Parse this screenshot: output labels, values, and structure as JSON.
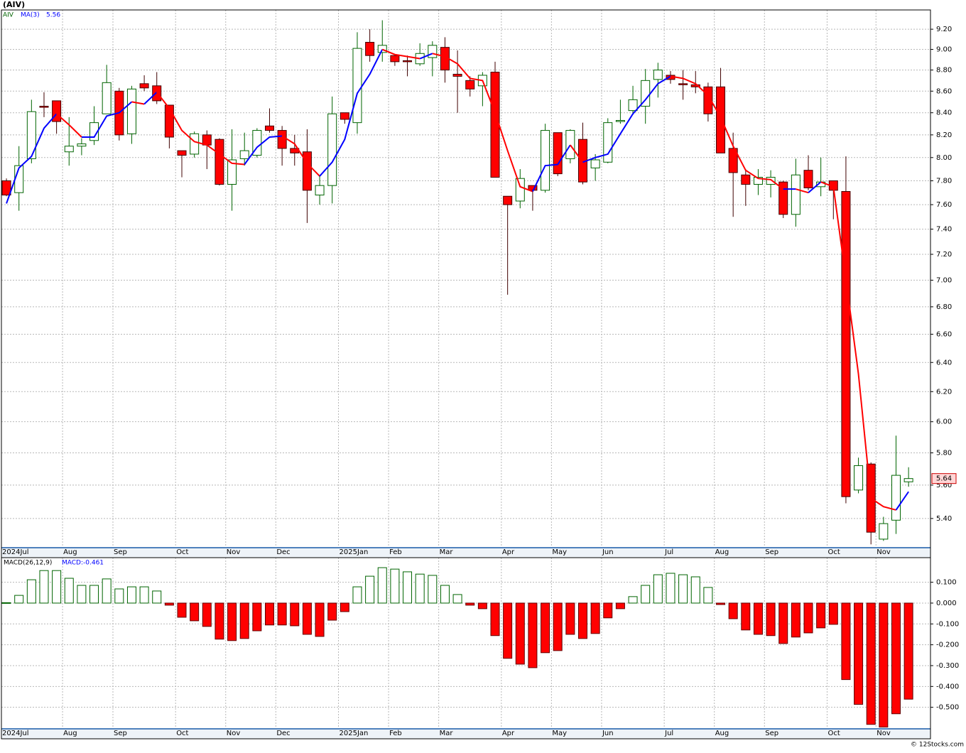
{
  "chart_data": [
    {
      "type": "candlestick",
      "title": "(AIV)",
      "series": [
        {
          "name": "AIV",
          "color": "#006400",
          "up_color": "#ffffff",
          "down_color": "#ff0000",
          "open": [
            7.8,
            7.7,
            7.99,
            8.46,
            8.51,
            8.05,
            8.1,
            8.15,
            8.39,
            8.6,
            8.21,
            8.67,
            8.65,
            8.47,
            8.06,
            8.03,
            8.2,
            8.16,
            7.77,
            7.99,
            8.02,
            8.28,
            8.24,
            8.08,
            8.05,
            7.68,
            7.76,
            8.4,
            8.31,
            9.07,
            8.97,
            8.94,
            8.89,
            8.86,
            8.92,
            9.02,
            8.76,
            8.7,
            8.65,
            8.78,
            7.67,
            7.63,
            7.76,
            7.72,
            8.22,
            7.99,
            8.16,
            7.91,
            7.96,
            8.32,
            8.42,
            8.46,
            8.71,
            8.75,
            8.67,
            8.66,
            8.64,
            8.64,
            8.08,
            7.85,
            7.77,
            7.77,
            7.79,
            7.52,
            7.89,
            7.75,
            7.8,
            7.71,
            5.57,
            5.73,
            5.28,
            5.39,
            5.62
          ],
          "high": [
            7.82,
            8.1,
            8.52,
            8.59,
            8.51,
            8.36,
            8.17,
            8.46,
            8.85,
            8.63,
            8.65,
            8.75,
            8.78,
            8.47,
            8.06,
            8.23,
            8.24,
            8.17,
            8.25,
            8.22,
            8.26,
            8.44,
            8.28,
            8.2,
            8.25,
            7.84,
            8.55,
            8.4,
            9.17,
            9.2,
            9.29,
            8.94,
            8.94,
            9.06,
            9.08,
            9.12,
            8.99,
            8.74,
            8.78,
            8.88,
            7.67,
            7.9,
            7.76,
            8.3,
            8.22,
            8.25,
            8.31,
            8.03,
            8.35,
            8.52,
            8.65,
            8.81,
            8.87,
            8.79,
            8.8,
            8.79,
            8.68,
            8.82,
            8.22,
            7.9,
            7.9,
            7.89,
            7.8,
            7.99,
            8.02,
            8.0,
            7.8,
            8.01,
            5.77,
            5.74,
            5.41,
            5.91,
            5.71
          ],
          "low": [
            7.67,
            7.55,
            7.95,
            8.36,
            8.21,
            7.93,
            8.02,
            8.11,
            8.39,
            8.15,
            8.12,
            8.6,
            8.48,
            8.08,
            7.83,
            8.0,
            7.9,
            7.76,
            7.55,
            7.93,
            8.0,
            8.22,
            7.93,
            7.93,
            7.45,
            7.6,
            7.61,
            8.3,
            8.21,
            8.88,
            8.88,
            8.84,
            8.74,
            8.84,
            8.74,
            8.68,
            8.4,
            8.55,
            8.46,
            7.83,
            6.89,
            7.57,
            7.55,
            7.7,
            7.84,
            7.95,
            7.77,
            7.8,
            7.95,
            8.3,
            8.38,
            8.3,
            8.54,
            8.67,
            8.52,
            8.58,
            8.32,
            8.04,
            7.5,
            7.59,
            7.68,
            7.66,
            7.49,
            7.42,
            7.72,
            7.67,
            7.48,
            5.49,
            5.55,
            5.25,
            5.27,
            5.31,
            5.59
          ],
          "close": [
            7.68,
            7.93,
            8.41,
            8.45,
            8.32,
            8.1,
            8.12,
            8.31,
            8.68,
            8.2,
            8.62,
            8.63,
            8.51,
            8.18,
            8.02,
            8.21,
            8.11,
            7.77,
            7.98,
            8.06,
            8.24,
            8.24,
            8.08,
            8.04,
            7.72,
            7.76,
            8.39,
            8.34,
            9.01,
            8.94,
            9.04,
            8.88,
            8.88,
            8.96,
            9.04,
            8.8,
            8.74,
            8.62,
            8.75,
            7.83,
            7.6,
            7.82,
            7.72,
            8.24,
            7.86,
            8.24,
            7.79,
            7.98,
            8.31,
            8.33,
            8.52,
            8.7,
            8.8,
            8.71,
            8.66,
            8.64,
            8.39,
            8.04,
            7.87,
            7.77,
            7.83,
            7.83,
            7.52,
            7.85,
            7.74,
            7.79,
            7.72,
            5.53,
            5.72,
            5.32,
            5.37,
            5.66,
            5.64
          ],
          "last_label": "5.64"
        },
        {
          "name": "MA(3)",
          "rising_color": "#0000ff",
          "falling_color": "#ff0000",
          "values": [
            7.61,
            7.91,
            8.01,
            8.26,
            8.39,
            8.29,
            8.18,
            8.18,
            8.37,
            8.4,
            8.5,
            8.48,
            8.59,
            8.44,
            8.24,
            8.14,
            8.11,
            8.03,
            7.95,
            7.94,
            8.09,
            8.18,
            8.19,
            8.12,
            7.95,
            7.84,
            7.96,
            8.16,
            8.58,
            8.76,
            9.0,
            8.95,
            8.93,
            8.91,
            8.96,
            8.93,
            8.86,
            8.72,
            8.7,
            8.4,
            8.06,
            7.75,
            7.71,
            7.93,
            7.94,
            8.11,
            7.96,
            8.0,
            8.03,
            8.21,
            8.39,
            8.52,
            8.67,
            8.74,
            8.72,
            8.67,
            8.56,
            8.36,
            8.1,
            7.89,
            7.82,
            7.81,
            7.73,
            7.73,
            7.7,
            7.79,
            7.75,
            7.01,
            6.32,
            5.52,
            5.47,
            5.45,
            5.56
          ],
          "value_label": "5.56"
        }
      ],
      "xlim": [
        -0.4,
        73.75
      ],
      "xticks": [
        {
          "value": -0.4,
          "label": "2024Jul"
        },
        {
          "value": 4.48,
          "label": "Aug"
        },
        {
          "value": 8.5,
          "label": "Sep"
        },
        {
          "value": 13.5,
          "label": "Oct"
        },
        {
          "value": 17.5,
          "label": "Nov"
        },
        {
          "value": 21.5,
          "label": "Dec"
        },
        {
          "value": 26.5,
          "label": "2025Jan"
        },
        {
          "value": 30.5,
          "label": "Feb"
        },
        {
          "value": 34.5,
          "label": "Mar"
        },
        {
          "value": 39.5,
          "label": "Apr"
        },
        {
          "value": 43.5,
          "label": "May"
        },
        {
          "value": 47.5,
          "label": "Jun"
        },
        {
          "value": 52.5,
          "label": "Jul"
        },
        {
          "value": 56.5,
          "label": "Aug"
        },
        {
          "value": 60.5,
          "label": "Sep"
        },
        {
          "value": 65.5,
          "label": "Oct"
        },
        {
          "value": 69.4,
          "label": "Nov"
        }
      ],
      "ylim": [
        5.235,
        9.395
      ],
      "log_scale": true,
      "grid": true,
      "yticks": [
        {
          "value": 5.4,
          "label": "5.40"
        },
        {
          "value": 5.6,
          "label": "5.60"
        },
        {
          "value": 5.8,
          "label": "5.80"
        },
        {
          "value": 6.0,
          "label": "6.00"
        },
        {
          "value": 6.2,
          "label": "6.20"
        },
        {
          "value": 6.4,
          "label": "6.40"
        },
        {
          "value": 6.6,
          "label": "6.60"
        },
        {
          "value": 6.8,
          "label": "6.80"
        },
        {
          "value": 7.0,
          "label": "7.00"
        },
        {
          "value": 7.2,
          "label": "7.20"
        },
        {
          "value": 7.4,
          "label": "7.40"
        },
        {
          "value": 7.6,
          "label": "7.60"
        },
        {
          "value": 7.8,
          "label": "7.80"
        },
        {
          "value": 8.0,
          "label": "8.00"
        },
        {
          "value": 8.2,
          "label": "8.20"
        },
        {
          "value": 8.4,
          "label": "8.40"
        },
        {
          "value": 8.6,
          "label": "8.60"
        },
        {
          "value": 8.8,
          "label": "8.80"
        },
        {
          "value": 9.0,
          "label": "9.00"
        },
        {
          "value": 9.2,
          "label": "9.20"
        }
      ]
    },
    {
      "type": "bar",
      "title": "MACD(26,12,9)",
      "series": [
        {
          "name": "MACD:-0.461",
          "up_color": "#ffffff",
          "up_stroke": "#006400",
          "down_color": "#ff0000",
          "values": [
            0.002,
            0.037,
            0.112,
            0.156,
            0.156,
            0.119,
            0.085,
            0.085,
            0.116,
            0.068,
            0.078,
            0.078,
            0.058,
            -0.01,
            -0.068,
            -0.085,
            -0.112,
            -0.173,
            -0.18,
            -0.17,
            -0.133,
            -0.105,
            -0.105,
            -0.109,
            -0.15,
            -0.16,
            -0.082,
            -0.041,
            0.078,
            0.129,
            0.17,
            0.163,
            0.15,
            0.139,
            0.133,
            0.085,
            0.041,
            -0.01,
            -0.027,
            -0.156,
            -0.265,
            -0.293,
            -0.31,
            -0.238,
            -0.228,
            -0.15,
            -0.17,
            -0.146,
            -0.071,
            -0.027,
            0.031,
            0.085,
            0.136,
            0.143,
            0.136,
            0.126,
            0.075,
            -0.007,
            -0.075,
            -0.129,
            -0.15,
            -0.156,
            -0.194,
            -0.163,
            -0.143,
            -0.119,
            -0.102,
            -0.367,
            -0.486,
            -0.582,
            -0.595,
            -0.531,
            -0.461
          ]
        }
      ],
      "xlim": [
        -0.4,
        73.75
      ],
      "xticks": [
        {
          "value": -0.4,
          "label": "2024Jul"
        },
        {
          "value": 4.48,
          "label": "Aug"
        },
        {
          "value": 8.5,
          "label": "Sep"
        },
        {
          "value": 13.5,
          "label": "Oct"
        },
        {
          "value": 17.5,
          "label": "Nov"
        },
        {
          "value": 21.5,
          "label": "Dec"
        },
        {
          "value": 26.5,
          "label": "2025Jan"
        },
        {
          "value": 30.5,
          "label": "Feb"
        },
        {
          "value": 34.5,
          "label": "Mar"
        },
        {
          "value": 39.5,
          "label": "Apr"
        },
        {
          "value": 43.5,
          "label": "May"
        },
        {
          "value": 47.5,
          "label": "Jun"
        },
        {
          "value": 52.5,
          "label": "Jul"
        },
        {
          "value": 56.5,
          "label": "Aug"
        },
        {
          "value": 60.5,
          "label": "Sep"
        },
        {
          "value": 65.5,
          "label": "Oct"
        },
        {
          "value": 69.4,
          "label": "Nov"
        }
      ],
      "ylim": [
        -0.6,
        0.218
      ],
      "grid": true,
      "yticks": [
        {
          "value": 0.1,
          "label": "0.100"
        },
        {
          "value": 0.0,
          "label": "0.000"
        },
        {
          "value": -0.1,
          "label": "-0.100"
        },
        {
          "value": -0.2,
          "label": "-0.200"
        },
        {
          "value": -0.3,
          "label": "-0.300"
        },
        {
          "value": -0.4,
          "label": "-0.400"
        },
        {
          "value": -0.5,
          "label": "-0.500"
        }
      ]
    }
  ],
  "footer": "© 12Stocks.com"
}
